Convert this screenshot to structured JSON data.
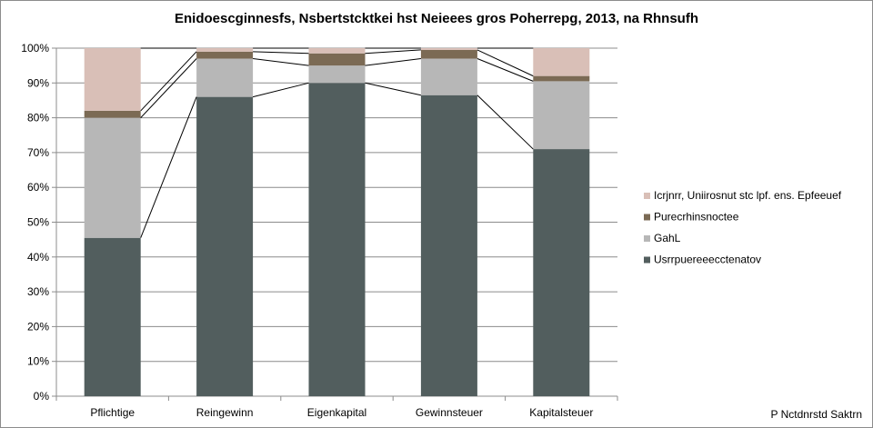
{
  "chart_data": {
    "type": "bar",
    "stacked": true,
    "title": "Enidoescginnesfs, Nsbertstcktkei hst Neieees gros Poherrepg, 2013, na Rhnsufh",
    "categories": [
      "Pflichtige",
      "Reingewinn",
      "Eigenkapital",
      "Gewinnsteuer",
      "Kapitalsteuer"
    ],
    "ylim": [
      0,
      100
    ],
    "yticks": [
      "0%",
      "10%",
      "20%",
      "30%",
      "40%",
      "50%",
      "60%",
      "70%",
      "80%",
      "90%",
      "100%"
    ],
    "grid": true,
    "legend_position": "right",
    "series": [
      {
        "name": "Usrrpuereeecctenatov",
        "color": "#525e5e",
        "values": [
          45.5,
          86,
          90,
          86.5,
          71
        ]
      },
      {
        "name": "GahL",
        "color": "#b7b7b7",
        "values": [
          34.5,
          11,
          5,
          10.5,
          19.5
        ]
      },
      {
        "name": "Purecrhinsnoctee",
        "color": "#7b6a54",
        "values": [
          2,
          2,
          3.5,
          2.5,
          1.5
        ]
      },
      {
        "name": "Icrjnrr, Uniirosnut stc lpf. ens. Epfeeuef",
        "color": "#d9bfb7",
        "values": [
          18,
          1,
          1.5,
          0.5,
          8
        ]
      }
    ],
    "source": "P Nctdnrstd Saktrn"
  }
}
